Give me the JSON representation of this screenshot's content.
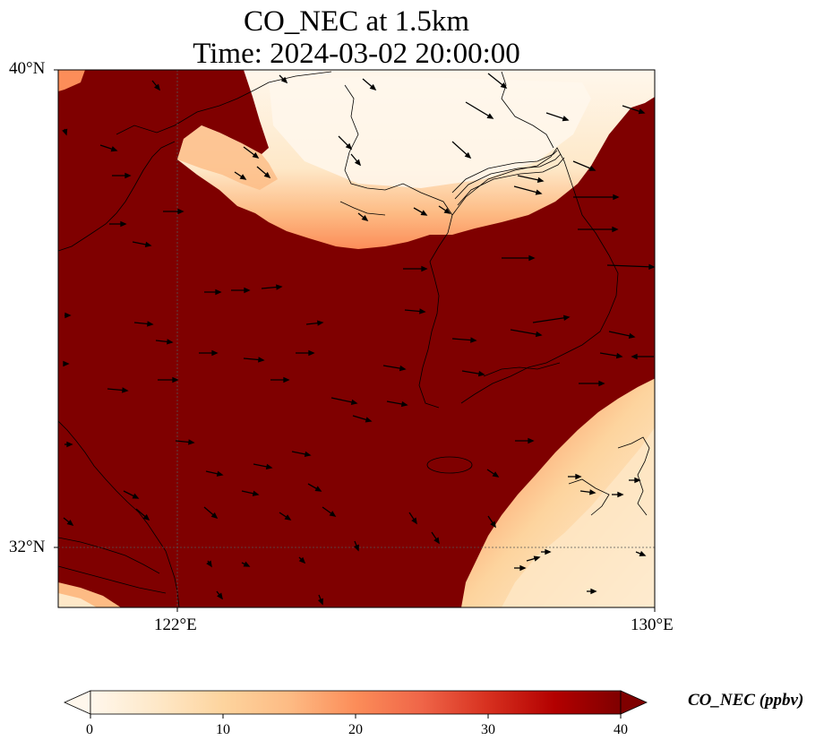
{
  "title_line1": "CO_NEC at 1.5km",
  "title_line2": "Time: 2024-03-02 20:00:00",
  "axes": {
    "lat_labels": [
      "40°N",
      "32°N"
    ],
    "lon_labels": [
      "122°E",
      "130°E"
    ]
  },
  "colorbar": {
    "label": "CO_NEC (ppbv)",
    "ticks": [
      "0",
      "10",
      "20",
      "30",
      "40"
    ],
    "range": [
      0,
      40
    ],
    "colormap": "OrRd",
    "colors": [
      "#fff7ec",
      "#fee8c8",
      "#fdd49e",
      "#fdbb84",
      "#fc8d59",
      "#ef6548",
      "#d7301f",
      "#b30000",
      "#7f0000"
    ]
  },
  "map": {
    "extent_lon": [
      120,
      130
    ],
    "extent_lat": [
      31,
      40
    ],
    "background_value_ppbv": 40,
    "background_color": "#7f0000",
    "gridlines": "dotted"
  }
}
